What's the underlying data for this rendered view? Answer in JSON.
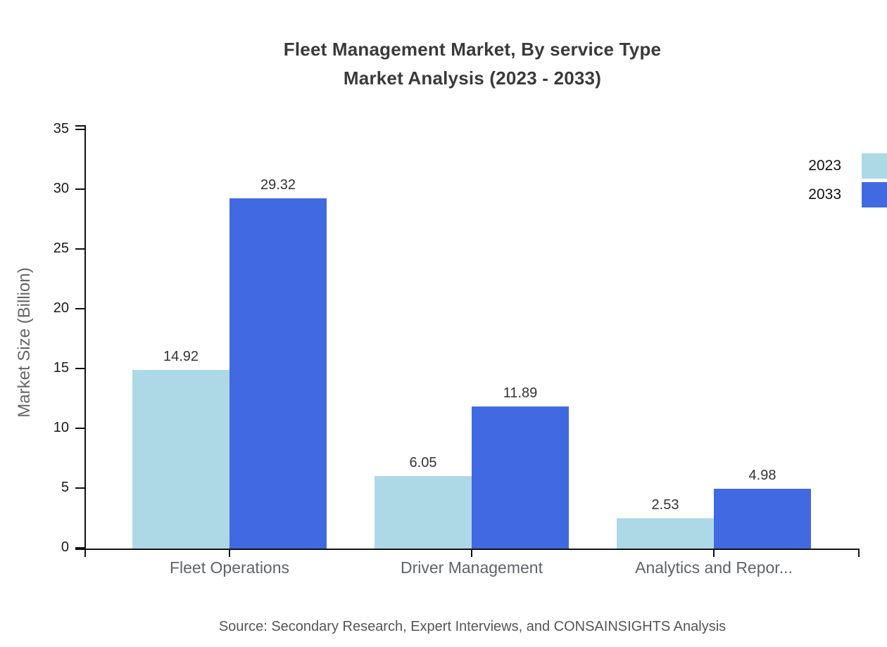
{
  "title": {
    "line1": "Fleet Management Market, By service Type",
    "line2": "Market Analysis (2023 - 2033)"
  },
  "source": "Source: Secondary Research, Expert Interviews, and CONSAINSIGHTS Analysis",
  "legend": [
    {
      "label": "2023",
      "color": "#ADD8E6"
    },
    {
      "label": "2033",
      "color": "#4169E1"
    }
  ],
  "colors": {
    "axis": "#111111",
    "title_text": "#3a3a3a",
    "tick_label": "#1a1a1a",
    "category_label": "#5f6368",
    "value_label": "#333333",
    "muted_text": "#555555"
  },
  "chart_data": {
    "type": "bar",
    "title": "Fleet Management Market, By service Type Market Analysis (2023 - 2033)",
    "categories": [
      "Fleet Operations",
      "Driver Management",
      "Analytics and Repor..."
    ],
    "series": [
      {
        "name": "2023",
        "color": "#ADD8E6",
        "values": [
          14.92,
          6.05,
          2.53
        ]
      },
      {
        "name": "2033",
        "color": "#4169E1",
        "values": [
          29.32,
          11.89,
          4.98
        ]
      }
    ],
    "xlabel": "",
    "ylabel": "Market Size (Billion)",
    "ylim": [
      0,
      35
    ],
    "ytick_step": 5,
    "grid": false,
    "legend_position": "top-right",
    "value_labels": true
  }
}
